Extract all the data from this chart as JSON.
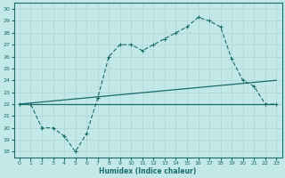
{
  "xlabel": "Humidex (Indice chaleur)",
  "bg_color": "#c2e8e8",
  "line_color": "#1a6b6b",
  "grid_color": "#b0d8d8",
  "xlim": [
    -0.5,
    23.5
  ],
  "ylim": [
    17.5,
    30.5
  ],
  "yticks": [
    18,
    19,
    20,
    21,
    22,
    23,
    24,
    25,
    26,
    27,
    28,
    29,
    30
  ],
  "xticks": [
    0,
    1,
    2,
    3,
    4,
    5,
    6,
    7,
    8,
    9,
    10,
    11,
    12,
    13,
    14,
    15,
    16,
    17,
    18,
    19,
    20,
    21,
    22,
    23
  ],
  "line1_x": [
    0,
    1,
    2,
    3,
    4,
    5,
    6,
    7,
    8,
    9,
    10,
    11,
    12,
    13,
    14,
    15,
    16,
    17,
    18,
    19,
    20,
    21,
    22,
    23
  ],
  "line1_y": [
    22,
    22,
    20,
    20,
    19.3,
    18,
    19.5,
    22.5,
    26,
    27,
    27,
    26.5,
    27,
    27.5,
    28,
    28.5,
    29.3,
    29,
    28.5,
    25.8,
    24,
    23.5,
    22,
    22
  ],
  "line2_x": [
    0,
    23
  ],
  "line2_y": [
    22,
    24
  ],
  "line3_x": [
    0,
    23
  ],
  "line3_y": [
    22,
    22
  ]
}
